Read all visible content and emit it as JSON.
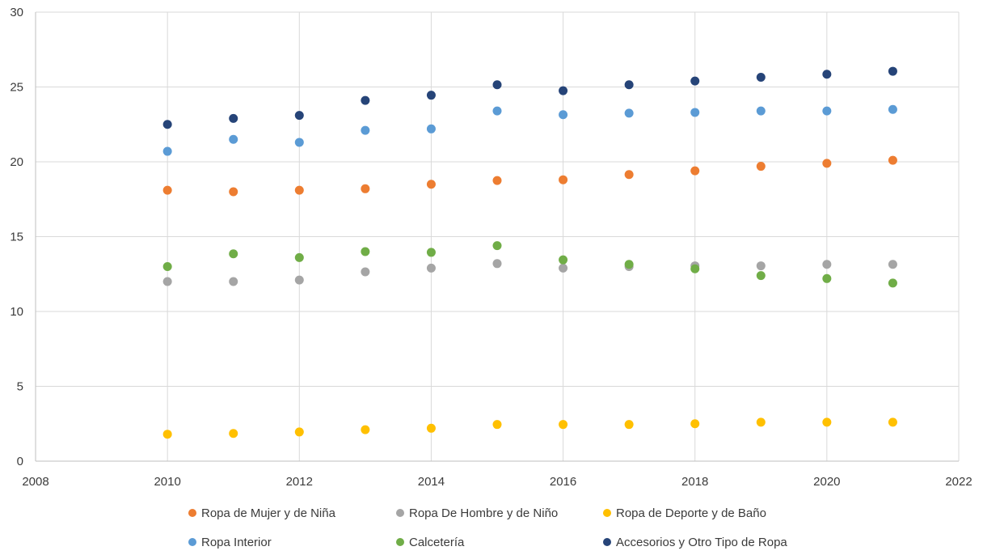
{
  "chart_data": {
    "type": "scatter",
    "title": "",
    "xlabel": "",
    "ylabel": "",
    "xlim": [
      2008,
      2022
    ],
    "ylim": [
      0,
      30
    ],
    "x_ticks": [
      2008,
      2010,
      2012,
      2014,
      2016,
      2018,
      2020,
      2022
    ],
    "y_ticks": [
      0,
      5,
      10,
      15,
      20,
      25,
      30
    ],
    "grid": true,
    "legend_position": "bottom",
    "x": [
      2010,
      2011,
      2012,
      2013,
      2014,
      2015,
      2016,
      2017,
      2018,
      2019,
      2020,
      2021
    ],
    "series": [
      {
        "name": "Ropa de Mujer y de Niña",
        "color": "#ED7D31",
        "values": [
          18.1,
          18.0,
          18.1,
          18.2,
          18.5,
          18.75,
          18.8,
          19.15,
          19.4,
          19.7,
          19.9,
          20.1
        ]
      },
      {
        "name": "Ropa De Hombre y de Niño",
        "color": "#A5A5A5",
        "values": [
          12.0,
          12.0,
          12.1,
          12.65,
          12.9,
          13.2,
          12.9,
          13.0,
          13.05,
          13.05,
          13.15,
          13.15
        ]
      },
      {
        "name": "Ropa de Deporte y de Baño",
        "color": "#FFC000",
        "values": [
          1.8,
          1.85,
          1.95,
          2.1,
          2.2,
          2.45,
          2.45,
          2.45,
          2.5,
          2.6,
          2.6,
          2.6
        ]
      },
      {
        "name": "Ropa Interior",
        "color": "#5B9BD5",
        "values": [
          20.7,
          21.5,
          21.3,
          22.1,
          22.2,
          23.4,
          23.15,
          23.25,
          23.3,
          23.4,
          23.4,
          23.5
        ]
      },
      {
        "name": "Calcetería",
        "color": "#70AD47",
        "values": [
          13.0,
          13.85,
          13.6,
          14.0,
          13.95,
          14.4,
          13.45,
          13.15,
          12.85,
          12.4,
          12.2,
          11.9
        ]
      },
      {
        "name": "Accesorios y Otro Tipo de Ropa",
        "color": "#264478",
        "values": [
          22.5,
          22.9,
          23.1,
          24.1,
          24.45,
          25.15,
          24.75,
          25.15,
          25.4,
          25.65,
          25.85,
          26.05
        ]
      }
    ]
  },
  "style": {
    "grid_color": "#D9D9D9",
    "axis_color": "#BFBFBF",
    "text_color": "#3B3B3B"
  }
}
